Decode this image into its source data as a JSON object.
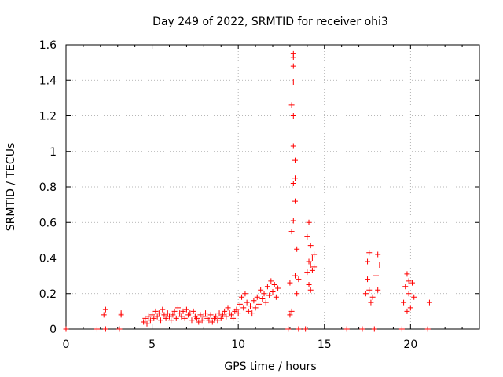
{
  "chart_data": {
    "type": "scatter",
    "title": "Day 249 of 2022, SRMTID for receiver ohi3",
    "xlabel": "GPS time / hours",
    "ylabel": "SRMTID / TECUs",
    "xlim": [
      0,
      24
    ],
    "ylim": [
      0,
      1.6
    ],
    "xticks": [
      0,
      5,
      10,
      15,
      20
    ],
    "yticks": [
      0,
      0.2,
      0.4,
      0.6,
      0.8,
      1,
      1.2,
      1.4,
      1.6
    ],
    "ytick_labels": [
      "0",
      "0.2",
      "0.4",
      "0.6",
      "0.8",
      "1",
      "1.2",
      "1.4",
      "1.6"
    ],
    "grid": true,
    "marker": "+",
    "color": "#ff0000",
    "series": [
      {
        "name": "SRMTID",
        "x": [
          0.0,
          1.8,
          2.2,
          2.3,
          2.3,
          3.1,
          3.2,
          3.2,
          4.5,
          4.6,
          4.7,
          4.8,
          4.9,
          5.0,
          5.1,
          5.2,
          5.3,
          5.4,
          5.5,
          5.6,
          5.7,
          5.8,
          5.9,
          6.0,
          6.1,
          6.2,
          6.3,
          6.4,
          6.5,
          6.6,
          6.7,
          6.8,
          6.9,
          7.0,
          7.1,
          7.2,
          7.3,
          7.4,
          7.5,
          7.6,
          7.7,
          7.8,
          7.9,
          8.0,
          8.1,
          8.2,
          8.3,
          8.4,
          8.5,
          8.6,
          8.7,
          8.8,
          8.9,
          9.0,
          9.1,
          9.2,
          9.3,
          9.4,
          9.5,
          9.6,
          9.7,
          9.8,
          9.9,
          10.0,
          10.1,
          10.2,
          10.3,
          10.4,
          10.5,
          10.6,
          10.7,
          10.8,
          10.9,
          11.0,
          11.1,
          11.2,
          11.3,
          11.4,
          11.5,
          11.6,
          11.7,
          11.8,
          11.9,
          12.0,
          12.1,
          12.2,
          12.3,
          12.9,
          13.0,
          13.0,
          13.1,
          13.1,
          13.1,
          13.2,
          13.2,
          13.2,
          13.2,
          13.2,
          13.2,
          13.2,
          13.2,
          13.3,
          13.3,
          13.3,
          13.3,
          13.4,
          13.4,
          13.5,
          13.5,
          13.9,
          14.0,
          14.0,
          14.1,
          14.1,
          14.1,
          14.2,
          14.2,
          14.2,
          14.3,
          14.3,
          14.4,
          14.4,
          16.3,
          17.2,
          17.4,
          17.5,
          17.5,
          17.6,
          17.6,
          17.7,
          17.8,
          17.9,
          18.0,
          18.1,
          18.1,
          18.2,
          19.5,
          19.6,
          19.7,
          19.8,
          19.8,
          19.9,
          19.9,
          20.0,
          20.1,
          20.2,
          21.0,
          21.1
        ],
        "y": [
          0.0,
          0.0,
          0.08,
          0.11,
          0.0,
          0.0,
          0.09,
          0.08,
          0.04,
          0.06,
          0.03,
          0.07,
          0.05,
          0.08,
          0.06,
          0.1,
          0.07,
          0.09,
          0.05,
          0.11,
          0.08,
          0.06,
          0.09,
          0.07,
          0.05,
          0.08,
          0.1,
          0.06,
          0.12,
          0.09,
          0.07,
          0.1,
          0.06,
          0.11,
          0.08,
          0.09,
          0.05,
          0.1,
          0.07,
          0.06,
          0.04,
          0.08,
          0.05,
          0.07,
          0.09,
          0.06,
          0.05,
          0.08,
          0.04,
          0.06,
          0.07,
          0.05,
          0.09,
          0.06,
          0.08,
          0.1,
          0.07,
          0.12,
          0.09,
          0.08,
          0.06,
          0.1,
          0.11,
          0.09,
          0.14,
          0.18,
          0.12,
          0.2,
          0.15,
          0.1,
          0.13,
          0.09,
          0.16,
          0.12,
          0.18,
          0.14,
          0.22,
          0.17,
          0.2,
          0.15,
          0.24,
          0.19,
          0.27,
          0.21,
          0.25,
          0.18,
          0.23,
          0.0,
          0.08,
          0.26,
          0.1,
          0.55,
          1.26,
          0.82,
          1.03,
          1.2,
          1.39,
          1.48,
          1.53,
          1.55,
          0.61,
          0.85,
          0.95,
          0.72,
          0.3,
          0.2,
          0.45,
          0.28,
          0.0,
          0.0,
          0.32,
          0.52,
          0.6,
          0.38,
          0.25,
          0.47,
          0.36,
          0.22,
          0.4,
          0.33,
          0.42,
          0.35,
          0.0,
          0.0,
          0.2,
          0.28,
          0.38,
          0.22,
          0.43,
          0.15,
          0.18,
          0.0,
          0.3,
          0.22,
          0.42,
          0.36,
          0.0,
          0.15,
          0.24,
          0.31,
          0.1,
          0.2,
          0.27,
          0.12,
          0.26,
          0.18,
          0.0,
          0.15
        ]
      }
    ]
  }
}
